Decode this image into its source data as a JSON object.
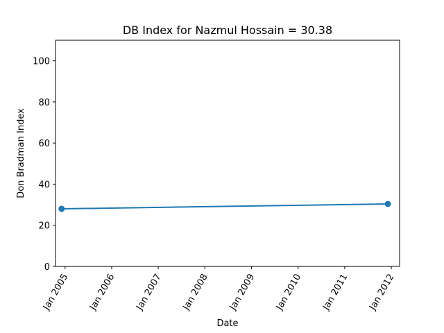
{
  "chart_data": {
    "type": "line",
    "title": "DB Index for Nazmul Hossain = 30.38",
    "xlabel": "Date",
    "ylabel": "Don Bradman Index",
    "ylim": [
      0,
      110
    ],
    "yticks": [
      0,
      20,
      40,
      60,
      80,
      100
    ],
    "xlim": [
      "2004-10-18",
      "2012-03-06"
    ],
    "xticks": [
      {
        "date": "2005-01-01",
        "label": "Jan 2005"
      },
      {
        "date": "2006-01-01",
        "label": "Jan 2006"
      },
      {
        "date": "2007-01-01",
        "label": "Jan 2007"
      },
      {
        "date": "2008-01-01",
        "label": "Jan 2008"
      },
      {
        "date": "2009-01-01",
        "label": "Jan 2009"
      },
      {
        "date": "2010-01-01",
        "label": "Jan 2010"
      },
      {
        "date": "2011-01-01",
        "label": "Jan 2011"
      },
      {
        "date": "2012-01-01",
        "label": "Jan 2012"
      }
    ],
    "series": [
      {
        "points": [
          {
            "x": "2004-12-05",
            "y": 28.0
          },
          {
            "x": "2011-12-05",
            "y": 30.38
          }
        ],
        "color": "#1f77b4"
      }
    ],
    "grid": false,
    "legend": "none"
  }
}
